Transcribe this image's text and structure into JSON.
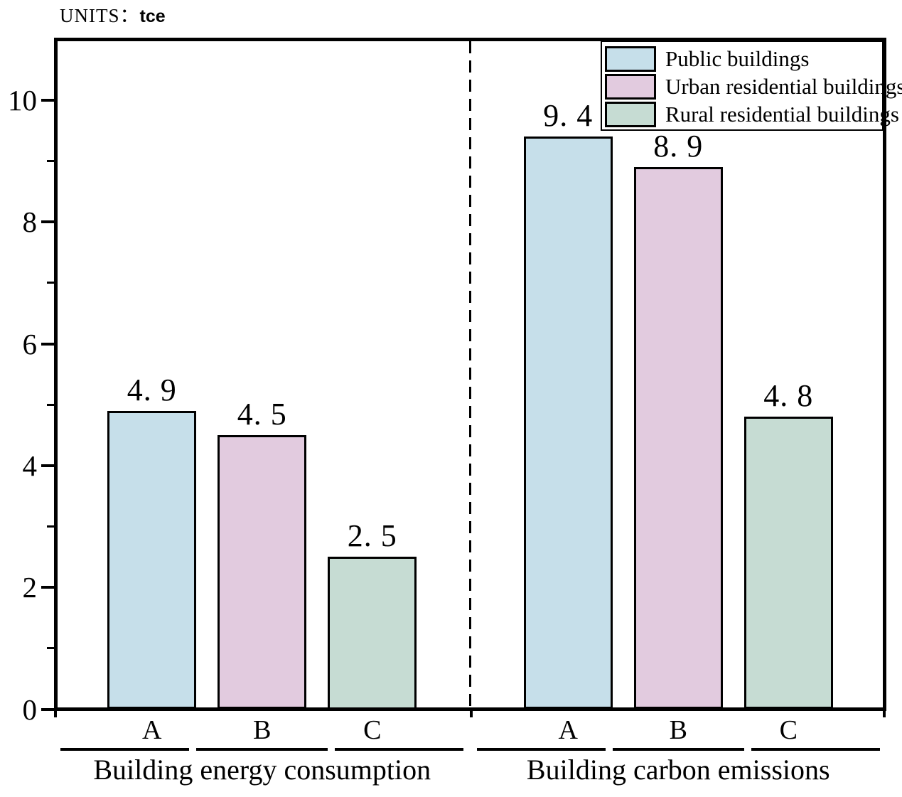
{
  "units": {
    "label": "UNITS：",
    "value": "tce"
  },
  "legend": {
    "items": [
      {
        "label": "Public buildings",
        "color": "#c6dfea"
      },
      {
        "label": "Urban residential buildings",
        "color": "#e2cbdf"
      },
      {
        "label": "Rural residential buildings",
        "color": "#c6dcd3"
      }
    ]
  },
  "chart_data": {
    "type": "bar",
    "title": "",
    "units": "tce",
    "xlabel": "",
    "ylabel": "",
    "ylim": [
      0,
      11
    ],
    "y_major_ticks": [
      0,
      2,
      4,
      6,
      8,
      10
    ],
    "y_minor_ticks": [
      1,
      3,
      5,
      7,
      9
    ],
    "grid": false,
    "legend_position": "top-right",
    "bar_colors": {
      "Public buildings": "#c6dfea",
      "Urban residential buildings": "#e2cbdf",
      "Rural residential buildings": "#c6dcd3"
    },
    "groups": [
      {
        "label": "Building energy consumption",
        "bars": [
          {
            "category": "A",
            "series": "Public buildings",
            "value": 4.9,
            "value_label": "4. 9"
          },
          {
            "category": "B",
            "series": "Urban residential buildings",
            "value": 4.5,
            "value_label": "4. 5"
          },
          {
            "category": "C",
            "series": "Rural residential buildings",
            "value": 2.5,
            "value_label": "2. 5"
          }
        ]
      },
      {
        "label": "Building carbon emissions",
        "bars": [
          {
            "category": "A",
            "series": "Public buildings",
            "value": 9.4,
            "value_label": "9. 4"
          },
          {
            "category": "B",
            "series": "Urban residential buildings",
            "value": 8.9,
            "value_label": "8. 9"
          },
          {
            "category": "C",
            "series": "Rural residential buildings",
            "value": 4.8,
            "value_label": "4. 8"
          }
        ]
      }
    ]
  }
}
